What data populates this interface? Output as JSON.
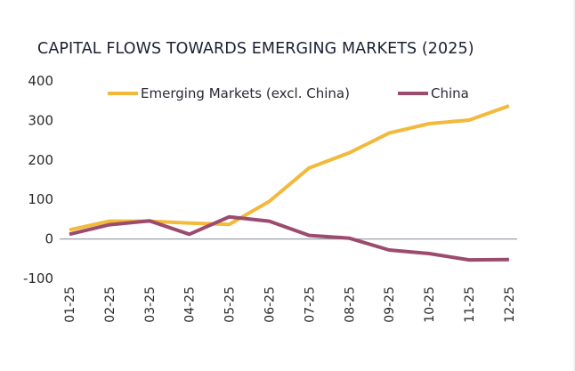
{
  "chart_data": {
    "type": "line",
    "title": "CAPITAL FLOWS TOWARDS EMERGING MARKETS (2025)",
    "xlabel": "",
    "ylabel": "",
    "categories": [
      "01-25",
      "02-25",
      "03-25",
      "04-25",
      "05-25",
      "06-25",
      "07-25",
      "08-25",
      "09-25",
      "10-25",
      "11-25",
      "12-25"
    ],
    "yticks": [
      400,
      300,
      200,
      100,
      0,
      -100
    ],
    "ylim": [
      -100,
      400
    ],
    "grid": false,
    "zero_line": true,
    "legend_placement": "top",
    "series": [
      {
        "name": "Emerging Markets (excl. China)",
        "color": "#f2b93b",
        "values": [
          23,
          45,
          45,
          40,
          37,
          95,
          180,
          218,
          268,
          292,
          301,
          337
        ]
      },
      {
        "name": "China",
        "color": "#9b4b6e",
        "values": [
          12,
          36,
          46,
          12,
          56,
          45,
          9,
          2,
          -28,
          -37,
          -53,
          -52
        ]
      }
    ],
    "colors": {
      "axis_line": "#9a9fa6",
      "text": "#2a2a2a",
      "title": "#1c2033"
    }
  }
}
